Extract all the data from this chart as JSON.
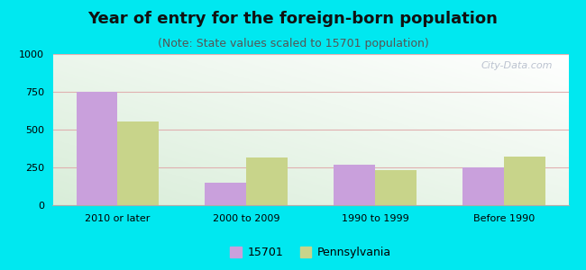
{
  "title": "Year of entry for the foreign-born population",
  "subtitle": "(Note: State values scaled to 15701 population)",
  "categories": [
    "2010 or later",
    "2000 to 2009",
    "1990 to 1999",
    "Before 1990"
  ],
  "values_15701": [
    750,
    150,
    270,
    250
  ],
  "values_pa": [
    555,
    315,
    235,
    320
  ],
  "color_15701": "#c9a0dc",
  "color_pa": "#c8d48a",
  "ylim": [
    0,
    1000
  ],
  "yticks": [
    0,
    250,
    500,
    750,
    1000
  ],
  "bg_outer": "#00e8f0",
  "title_fontsize": 13,
  "subtitle_fontsize": 9,
  "legend_label_15701": "15701",
  "legend_label_pa": "Pennsylvania",
  "tick_fontsize": 8,
  "grid_color": "#e0b0b0",
  "watermark": "City-Data.com"
}
